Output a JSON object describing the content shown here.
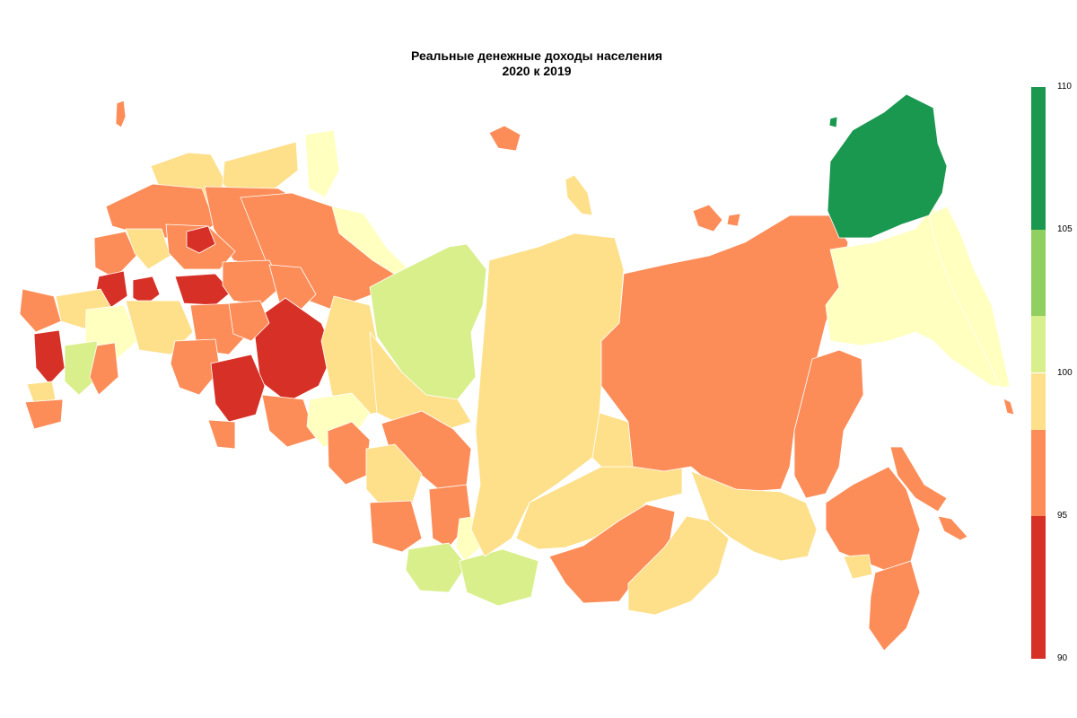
{
  "title": {
    "line1": "Реальные денежные доходы населения",
    "line2": "2020 к 2019"
  },
  "legend": {
    "min": 90,
    "max": 110,
    "bands": [
      {
        "from": 105,
        "to": 110,
        "color": "#1a9850"
      },
      {
        "from": 102,
        "to": 105,
        "color": "#91cf60"
      },
      {
        "from": 100,
        "to": 102,
        "color": "#d9ef8b"
      },
      {
        "from": 98,
        "to": 100,
        "color": "#fee08b"
      },
      {
        "from": 95,
        "to": 98,
        "color": "#fc8d59"
      },
      {
        "from": 90,
        "to": 95,
        "color": "#d73027"
      }
    ],
    "ticks": [
      "110",
      "105",
      "100",
      "95",
      "90"
    ],
    "tick_values": [
      110,
      105,
      100,
      95,
      90
    ]
  },
  "colors": {
    "green_dark": "#1a9850",
    "green_mid": "#91cf60",
    "green_light": "#d9ef8b",
    "yellow_pale": "#ffffbf",
    "yellow": "#fee08b",
    "orange": "#fc8d59",
    "red": "#d73027"
  }
}
